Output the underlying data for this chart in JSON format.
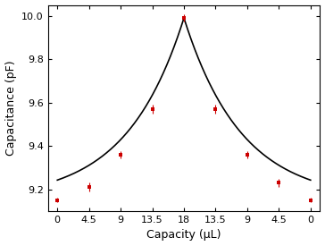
{
  "x_positions": [
    0,
    1,
    2,
    3,
    4,
    5,
    6,
    7,
    8
  ],
  "x_labels": [
    "0",
    "4.5",
    "9",
    "13.5",
    "18",
    "13.5",
    "9",
    "4.5",
    "0"
  ],
  "y_data": [
    9.15,
    9.21,
    9.36,
    9.57,
    9.99,
    9.57,
    9.36,
    9.23,
    9.15
  ],
  "y_err": [
    0.01,
    0.02,
    0.015,
    0.02,
    0.015,
    0.02,
    0.015,
    0.02,
    0.01
  ],
  "marker_color": "#cc0000",
  "line_color": "#000000",
  "xlabel": "Capacity (μL)",
  "ylabel": "Capacitance (pF)",
  "ylim": [
    9.1,
    10.05
  ],
  "yticks": [
    9.2,
    9.4,
    9.6,
    9.8,
    10.0
  ],
  "xlim": [
    -0.3,
    8.3
  ],
  "marker_size": 3.5,
  "linewidth": 1.2,
  "capsize": 2,
  "elinewidth": 0.8,
  "peak_x": 4,
  "peak_y": 9.99,
  "base_y": 9.15,
  "decay": 0.55
}
